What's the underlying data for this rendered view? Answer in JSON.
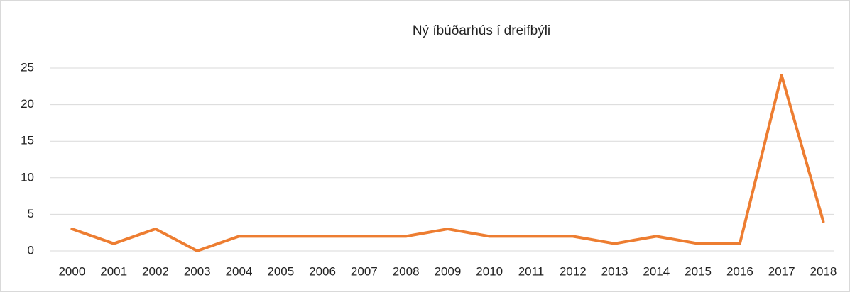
{
  "chart_data": {
    "type": "line",
    "title": "Ný íbúðarhús í dreifbýli",
    "categories": [
      "2000",
      "2001",
      "2002",
      "2003",
      "2004",
      "2005",
      "2006",
      "2007",
      "2008",
      "2009",
      "2010",
      "2011",
      "2012",
      "2013",
      "2014",
      "2015",
      "2016",
      "2017",
      "2018"
    ],
    "values": [
      3,
      1,
      3,
      0,
      2,
      2,
      2,
      2,
      2,
      3,
      2,
      2,
      2,
      1,
      2,
      1,
      1,
      24,
      4
    ],
    "color": "#ed7d31",
    "ylim": [
      0,
      25
    ],
    "yticks": [
      0,
      5,
      10,
      15,
      20,
      25
    ],
    "grid": true
  }
}
